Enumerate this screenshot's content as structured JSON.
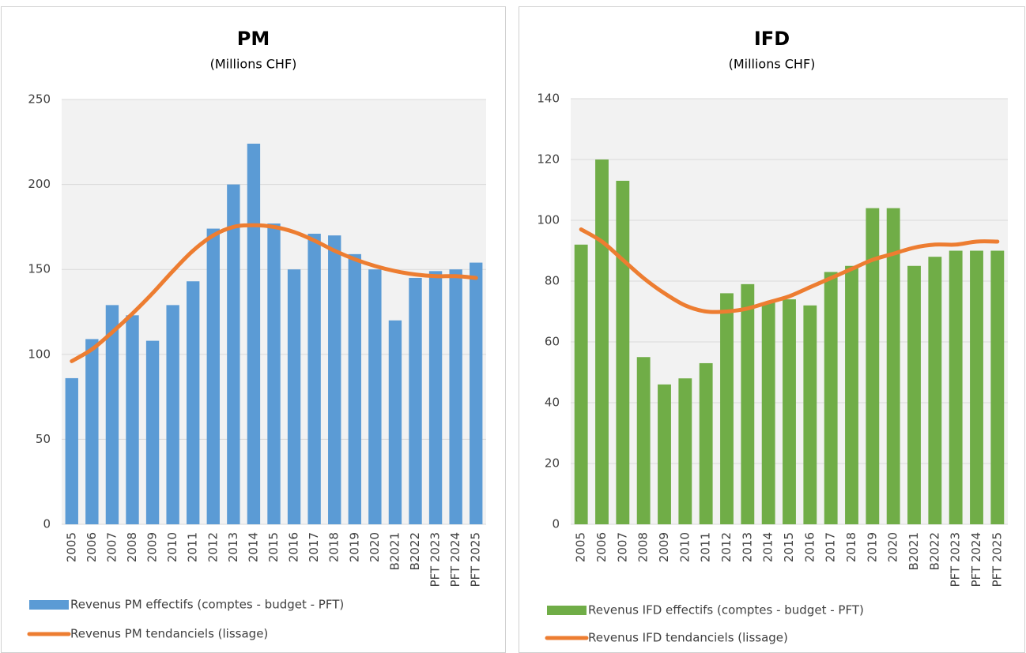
{
  "chart_data": [
    {
      "type": "bar",
      "title": "PM",
      "subtitle": "(Millions CHF)",
      "categories": [
        "2005",
        "2006",
        "2007",
        "2008",
        "2009",
        "2010",
        "2011",
        "2012",
        "2013",
        "2014",
        "2015",
        "2016",
        "2017",
        "2018",
        "2019",
        "2020",
        "B2021",
        "B2022",
        "PFT 2023",
        "PFT 2024",
        "PFT 2025"
      ],
      "series": [
        {
          "name": "Revenus PM effectifs (comptes - budget - PFT)",
          "type": "bar",
          "color": "#5b9bd5",
          "values": [
            86,
            109,
            129,
            123,
            108,
            129,
            143,
            174,
            200,
            224,
            177,
            150,
            171,
            170,
            159,
            150,
            120,
            145,
            149,
            150,
            154
          ]
        },
        {
          "name": "Revenus PM tendanciels (lissage)",
          "type": "line",
          "color": "#ed7d31",
          "values": [
            96,
            103,
            113,
            124,
            136,
            149,
            161,
            170,
            175,
            176,
            175,
            172,
            167,
            161,
            156,
            152,
            149,
            147,
            146,
            146,
            145
          ]
        }
      ],
      "ylim": [
        0,
        250
      ],
      "yticks": [
        0,
        50,
        100,
        150,
        200,
        250
      ],
      "grid": true
    },
    {
      "type": "bar",
      "title": "IFD",
      "subtitle": "(Millions CHF)",
      "categories": [
        "2005",
        "2006",
        "2007",
        "2008",
        "2009",
        "2010",
        "2011",
        "2012",
        "2013",
        "2014",
        "2015",
        "2016",
        "2017",
        "2018",
        "2019",
        "2020",
        "B2021",
        "B2022",
        "PFT 2023",
        "PFT 2024",
        "PFT 2025"
      ],
      "series": [
        {
          "name": "Revenus IFD effectifs (comptes - budget - PFT)",
          "type": "bar",
          "color": "#70ad47",
          "values": [
            92,
            120,
            113,
            55,
            46,
            48,
            53,
            76,
            79,
            73,
            74,
            72,
            83,
            85,
            104,
            104,
            85,
            88,
            90,
            90,
            90
          ]
        },
        {
          "name": "Revenus IFD tendanciels (lissage)",
          "type": "line",
          "color": "#ed7d31",
          "values": [
            97,
            93,
            87,
            81,
            76,
            72,
            70,
            70,
            71,
            73,
            75,
            78,
            81,
            84,
            87,
            89,
            91,
            92,
            92,
            93,
            93
          ]
        }
      ],
      "ylim": [
        0,
        140
      ],
      "yticks": [
        0,
        20,
        40,
        60,
        80,
        100,
        120,
        140
      ],
      "grid": true
    }
  ]
}
